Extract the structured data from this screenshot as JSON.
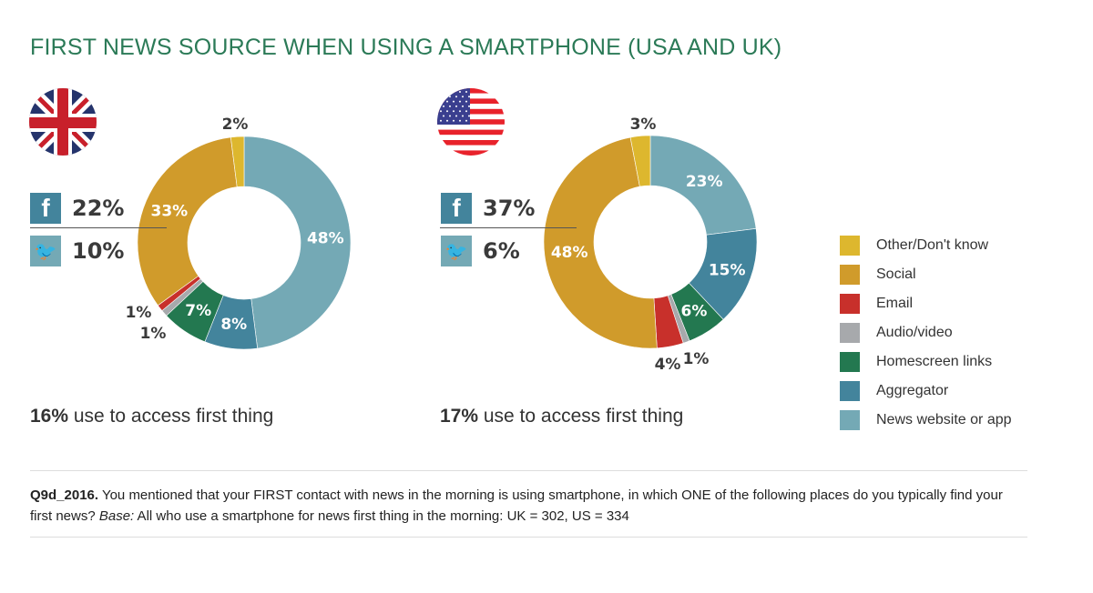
{
  "title": "FIRST NEWS SOURCE WHEN USING A SMARTPHONE (USA AND UK)",
  "chart_data": [
    {
      "type": "pie",
      "name": "UK",
      "categories": [
        "News website or app",
        "Aggregator",
        "Homescreen links",
        "Audio/video",
        "Email",
        "Social",
        "Other/Don't know"
      ],
      "values": [
        48,
        8,
        7,
        1,
        1,
        33,
        2
      ],
      "labels": [
        "48%",
        "8%",
        "7%",
        "1%",
        "1%",
        "33%",
        "2%"
      ],
      "facebook": "22%",
      "twitter": "10%",
      "access_pct": "16%",
      "access_text": " use to access first thing"
    },
    {
      "type": "pie",
      "name": "US",
      "categories": [
        "News website or app",
        "Aggregator",
        "Homescreen links",
        "Audio/video",
        "Email",
        "Social",
        "Other/Don't know"
      ],
      "values": [
        23,
        15,
        6,
        1,
        4,
        48,
        3
      ],
      "labels": [
        "23%",
        "15%",
        "6%",
        "1%",
        "4%",
        "48%",
        "3%"
      ],
      "facebook": "37%",
      "twitter": "6%",
      "access_pct": "17%",
      "access_text": " use to access first thing"
    }
  ],
  "colors": {
    "News website or app": "#74a9b5",
    "Aggregator": "#43849c",
    "Homescreen links": "#237850",
    "Audio/video": "#a7a9ac",
    "Email": "#c8302b",
    "Social": "#d09b2b",
    "Other/Don't know": "#ddb72e"
  },
  "legend": [
    "Other/Don't know",
    "Social",
    "Email",
    "Audio/video",
    "Homescreen links",
    "Aggregator",
    "News website or app"
  ],
  "note": {
    "bold": "Q9d_2016.",
    "text": " You mentioned that your FIRST contact with news in the morning is using smartphone, in which ONE of the following places do you typically find your first news? ",
    "base_label": "Base:",
    "base_text": " All who use a smartphone for news first thing in the morning: UK = 302, US = 334"
  }
}
